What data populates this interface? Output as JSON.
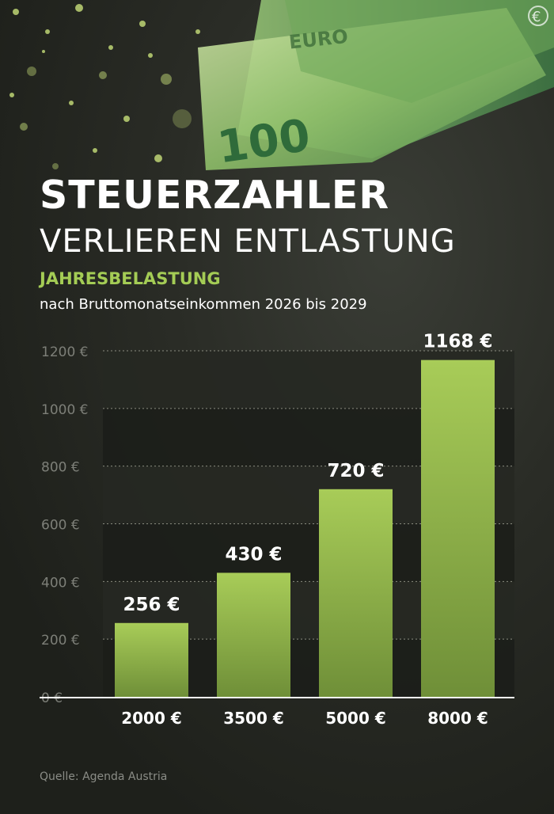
{
  "header": {
    "title_line1": "STEUERZAHLER",
    "title_line2": "VERLIEREN ENTLASTUNG",
    "subtitle": "JAHRESBELASTUNG",
    "description": "nach Bruttomonatseinkommen 2026 bis 2029"
  },
  "banknote": {
    "denomination": "100",
    "currency_text": "EURO"
  },
  "chart_data": {
    "type": "bar",
    "categories": [
      "2000 €",
      "3500 €",
      "5000 €",
      "8000 €"
    ],
    "values": [
      256,
      430,
      720,
      1168
    ],
    "value_labels": [
      "256 €",
      "430 €",
      "720 €",
      "1168 €"
    ],
    "y_ticks": [
      0,
      200,
      400,
      600,
      800,
      1000,
      1200
    ],
    "y_tick_labels": [
      "0 €",
      "200 €",
      "400 €",
      "600 €",
      "800 €",
      "1000 €",
      "1200 €"
    ],
    "ylim": [
      0,
      1200
    ],
    "grid": true,
    "bar_color_top": "#a8cc58",
    "bar_color_bottom": "#6f8f38"
  },
  "footer": {
    "source": "Quelle: Agenda Austria"
  },
  "colors": {
    "accent": "#a4cc55",
    "background": "#23251f",
    "text": "#ffffff",
    "muted": "#8a8c86"
  }
}
